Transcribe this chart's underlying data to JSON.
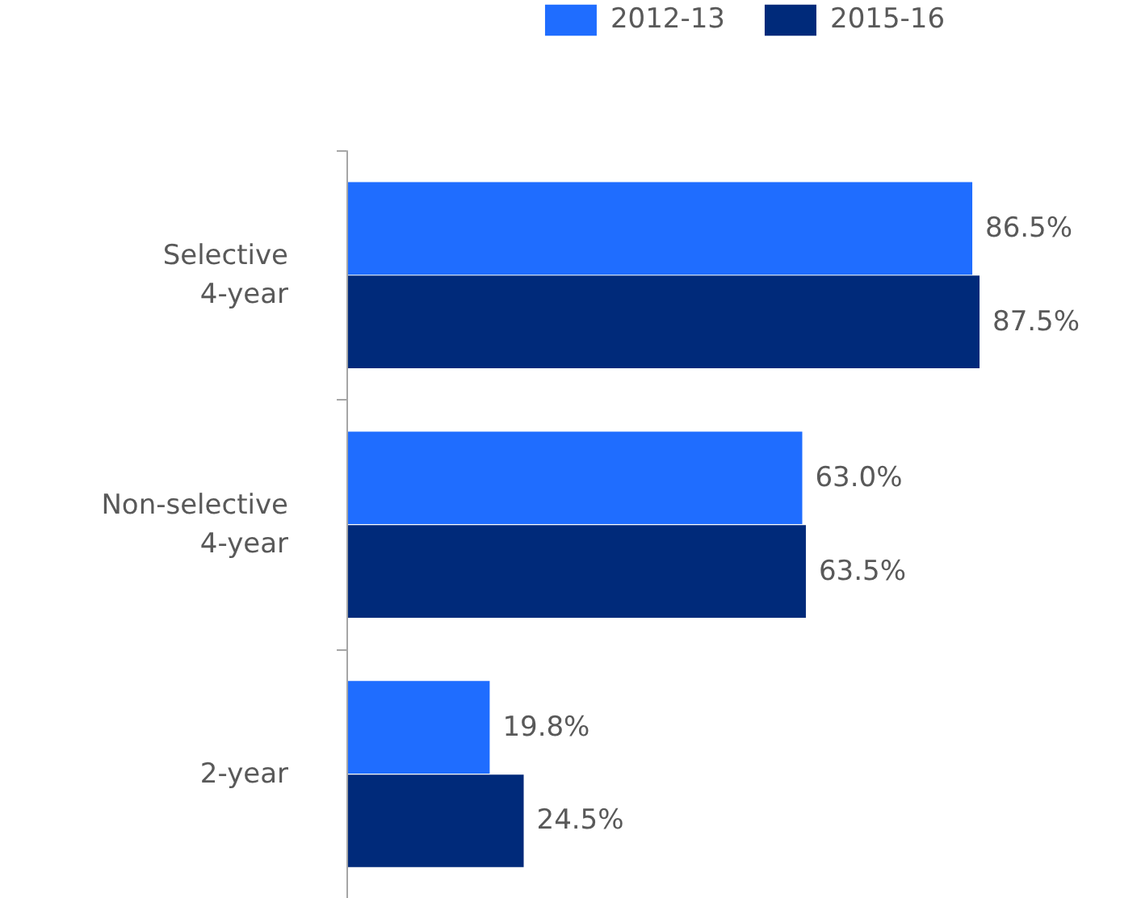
{
  "chart_data": {
    "type": "bar",
    "orientation": "horizontal",
    "categories": [
      "Selective\n4-year",
      "Non-selective\n4-year",
      "2-year"
    ],
    "series": [
      {
        "name": "2012-13",
        "color": "#1f6dff",
        "values": [
          86.5,
          63.0,
          19.8
        ],
        "value_labels": [
          "86.5%",
          "63.0%",
          "19.8%"
        ]
      },
      {
        "name": "2015-16",
        "color": "#002a7a",
        "values": [
          87.5,
          63.5,
          24.5
        ],
        "value_labels": [
          "87.5%",
          "63.5%",
          "24.5%"
        ]
      }
    ],
    "legend": "top",
    "grid": false
  }
}
